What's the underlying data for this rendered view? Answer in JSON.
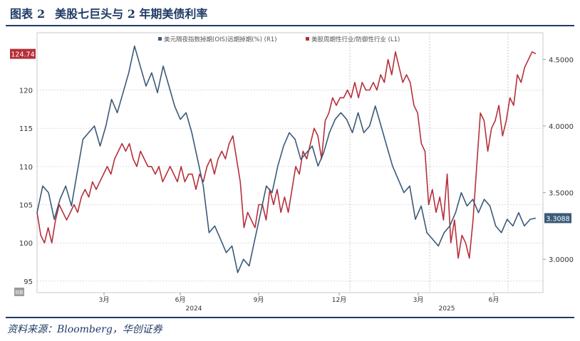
{
  "figure": {
    "title_label": "图表",
    "title_number": "2",
    "title_text": "美股七巨头与 2 年期美债利率",
    "source": "资料来源：Bloomberg，华创证券"
  },
  "chart_data": {
    "type": "line",
    "legend": [
      {
        "label": "美元隔夜指数掉期(OIS)远期掉期(%) (R1)",
        "color": "#3b5a78"
      },
      {
        "label": "美股周期性行业/防御性行业 (L1)",
        "color": "#b5303a"
      }
    ],
    "legend_position": "top-center",
    "grid": true,
    "x_axis": {
      "ticks": [
        "3月",
        "6月",
        "9月",
        "12月",
        "3月",
        "6月"
      ],
      "year_labels": [
        "2024",
        "2025"
      ]
    },
    "left_axis": {
      "ylim": [
        93.5,
        127.5
      ],
      "ticks": [
        "95",
        "100",
        "105",
        "110",
        "115",
        "120"
      ],
      "badge": "124.74",
      "badge_color": "#b5303a",
      "corner_label": "指数"
    },
    "right_axis": {
      "ylim": [
        2.75,
        4.7
      ],
      "ticks": [
        "3.0000",
        "3.5000",
        "4.0000",
        "4.5000"
      ],
      "badge": "3.3088",
      "badge_color": "#3b5a78"
    },
    "series": [
      {
        "name": "美股周期性行业/防御性行业 (L1)",
        "axis": "left",
        "color": "#b5303a",
        "values": [
          104,
          101,
          100,
          102,
          100,
          103,
          105,
          104,
          103,
          104,
          105,
          104,
          106,
          107,
          106,
          108,
          107,
          108,
          109,
          110,
          109,
          111,
          112,
          113,
          112,
          113,
          111,
          110,
          112,
          111,
          110,
          110,
          109,
          110,
          108,
          109,
          110,
          109,
          108,
          110,
          108,
          109,
          109,
          107,
          109,
          108,
          110,
          111,
          109,
          111,
          112,
          111,
          113,
          114,
          111,
          108,
          102,
          104,
          103,
          102,
          105,
          105,
          103,
          107,
          105,
          107,
          104,
          106,
          104,
          107,
          110,
          109,
          112,
          111,
          113,
          115,
          114,
          111,
          116,
          117,
          119,
          118,
          119,
          119,
          120,
          119,
          121,
          119,
          121,
          120,
          120,
          121,
          120,
          122,
          121,
          124,
          122,
          125,
          123,
          121,
          122,
          121,
          118,
          117,
          113,
          112,
          105,
          107,
          104,
          106,
          103,
          109,
          100,
          103,
          98,
          101,
          100,
          98,
          103,
          110,
          117,
          116,
          112,
          115,
          116,
          118,
          114,
          116,
          119,
          118,
          122,
          121,
          123,
          124,
          125,
          124.74
        ]
      },
      {
        "name": "美元隔夜指数掉期(OIS)远期掉期(%) (R1)",
        "axis": "right",
        "color": "#3b5a78",
        "values": [
          3.35,
          3.55,
          3.5,
          3.3,
          3.45,
          3.55,
          3.4,
          3.65,
          3.9,
          3.95,
          4.0,
          3.85,
          4.0,
          4.2,
          4.1,
          4.25,
          4.4,
          4.6,
          4.45,
          4.3,
          4.4,
          4.25,
          4.45,
          4.3,
          4.15,
          4.05,
          4.1,
          3.95,
          3.75,
          3.55,
          3.2,
          3.25,
          3.15,
          3.05,
          3.1,
          2.9,
          3.0,
          2.95,
          3.15,
          3.35,
          3.55,
          3.5,
          3.7,
          3.85,
          3.95,
          3.9,
          3.75,
          3.8,
          3.85,
          3.7,
          3.8,
          3.95,
          4.05,
          4.1,
          4.05,
          3.95,
          4.1,
          3.95,
          4.0,
          4.15,
          4.0,
          3.85,
          3.7,
          3.6,
          3.5,
          3.55,
          3.3,
          3.4,
          3.2,
          3.15,
          3.1,
          3.2,
          3.25,
          3.35,
          3.5,
          3.4,
          3.45,
          3.35,
          3.45,
          3.4,
          3.25,
          3.2,
          3.3,
          3.25,
          3.35,
          3.25,
          3.3,
          3.3088
        ]
      }
    ]
  }
}
